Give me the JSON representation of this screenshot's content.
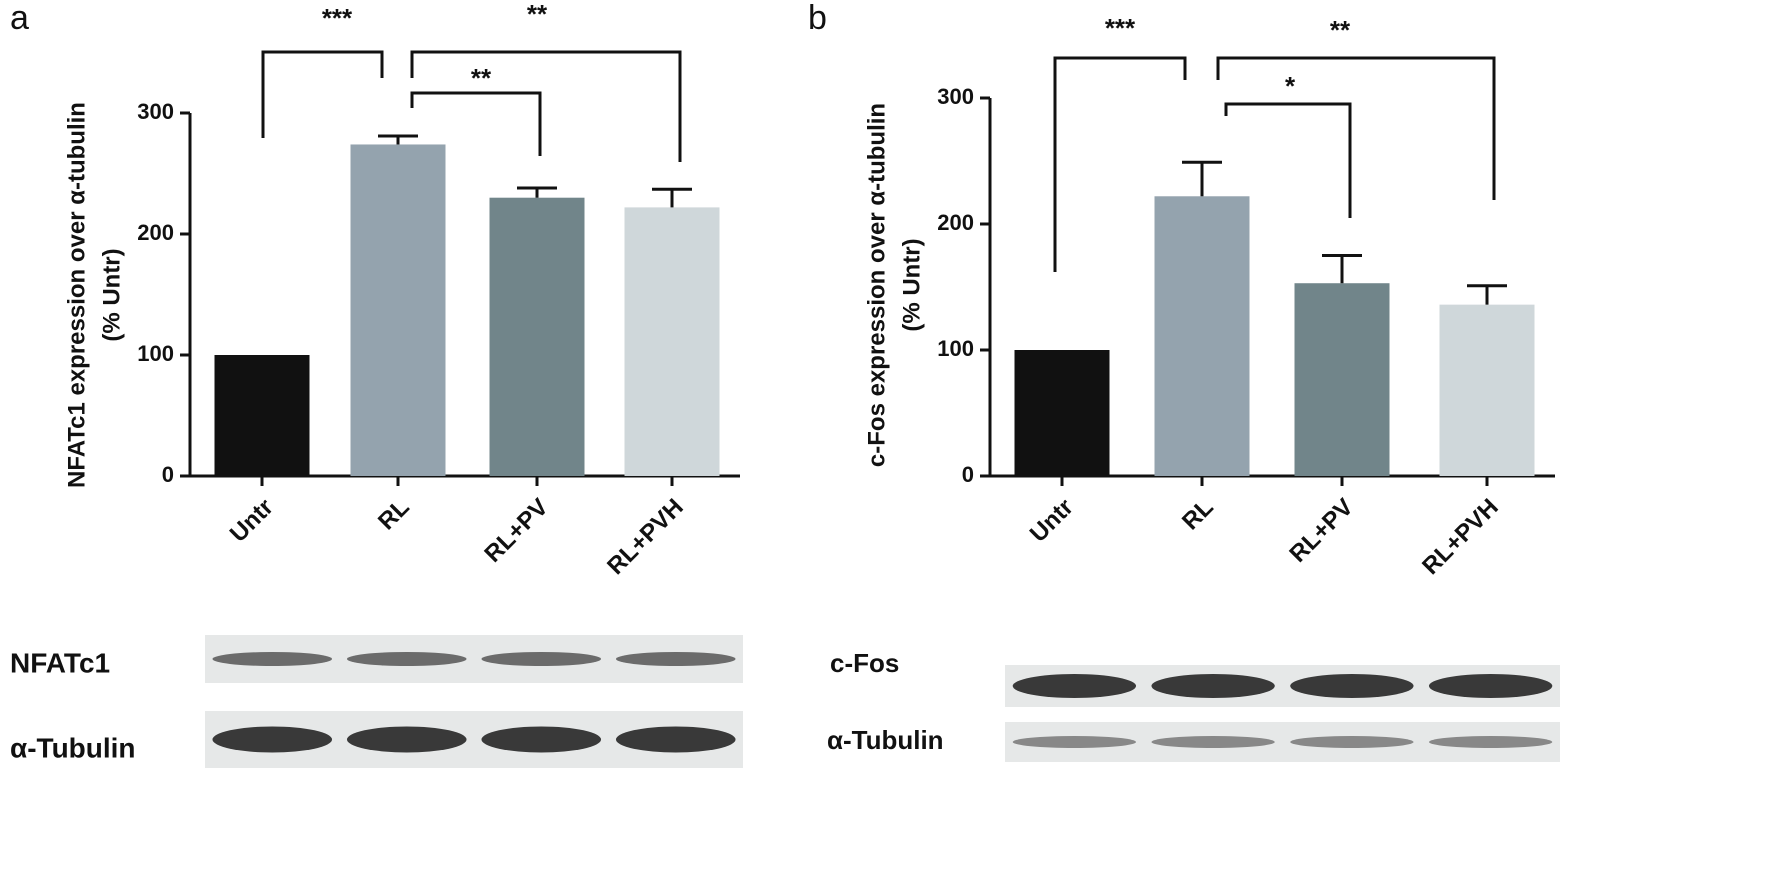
{
  "chart_data": [
    {
      "type": "bar",
      "panel": "a",
      "ylabel": [
        "NFATc1 expression over α-tubulin",
        "(% Untr)"
      ],
      "categories": [
        "Untr",
        "RL",
        "RL+PV",
        "RL+PVH"
      ],
      "values": [
        100,
        274,
        230,
        222
      ],
      "errors": [
        0,
        7,
        8,
        15
      ],
      "colors": [
        "#111111",
        "#94a3ae",
        "#71858a",
        "#cfd7da"
      ],
      "ylim": [
        0,
        300
      ],
      "yticks": [
        0,
        100,
        200,
        300
      ],
      "annotations": [
        "***",
        "**",
        "**"
      ],
      "blot_labels": [
        "NFATc1",
        "α-Tubulin"
      ]
    },
    {
      "type": "bar",
      "panel": "b",
      "ylabel": [
        "c-Fos expression over α-tubulin",
        "(% Untr)"
      ],
      "categories": [
        "Untr",
        "RL",
        "RL+PV",
        "RL+PVH"
      ],
      "values": [
        100,
        222,
        153,
        136
      ],
      "errors": [
        0,
        27,
        22,
        15
      ],
      "colors": [
        "#111111",
        "#94a3ae",
        "#71858a",
        "#cfd7da"
      ],
      "ylim": [
        0,
        300
      ],
      "yticks": [
        0,
        100,
        200,
        300
      ],
      "annotations": [
        "***",
        "**",
        "*"
      ],
      "blot_labels": [
        "c-Fos",
        "α-Tubulin"
      ]
    }
  ]
}
